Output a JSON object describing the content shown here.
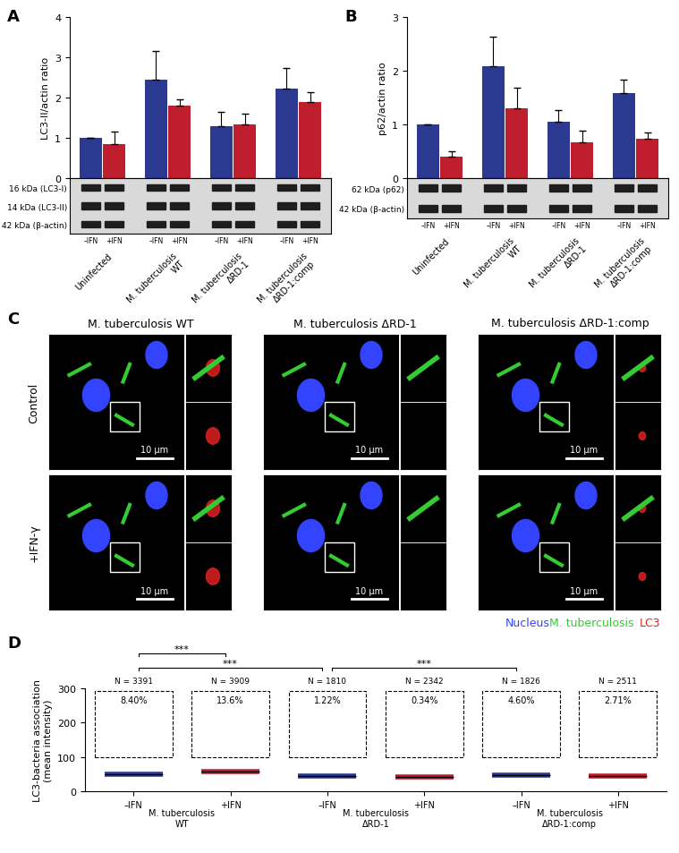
{
  "chart_data": [
    {
      "panel": "A",
      "type": "bar",
      "ylabel": "LC3-II/actin ratio",
      "ylim": [
        0,
        4
      ],
      "yticks": [
        0,
        1,
        2,
        3,
        4
      ],
      "tick_labels": "y",
      "categories": [
        "Uninfected",
        "M. tuberculosis WT",
        "M. tuberculosis ΔRD-1",
        "M. tuberculosis ΔRD-1:comp"
      ],
      "series": [
        {
          "name": "–IFN",
          "color": "#2b3990",
          "values": [
            1.0,
            2.45,
            1.28,
            2.22
          ],
          "errors": [
            0,
            0.7,
            0.36,
            0.52
          ]
        },
        {
          "name": "+IFN",
          "color": "#be1e2d",
          "values": [
            0.85,
            1.8,
            1.33,
            1.9
          ],
          "errors": [
            0.3,
            0.15,
            0.26,
            0.23
          ]
        }
      ],
      "blot_bands": [
        "16 kDa (LC3-I)",
        "14 kDa (LC3-II)",
        "42 kDa (β-actin)"
      ]
    },
    {
      "panel": "B",
      "type": "bar",
      "ylabel": "p62/actin ratio",
      "ylim": [
        0,
        3
      ],
      "yticks": [
        0,
        1,
        2,
        3
      ],
      "tick_labels": "y",
      "categories": [
        "Uninfected",
        "M. tuberculosis WT",
        "M. tuberculosis ΔRD-1",
        "M. tuberculosis ΔRD-1:comp"
      ],
      "series": [
        {
          "name": "–IFN",
          "color": "#2b3990",
          "values": [
            1.0,
            2.08,
            1.05,
            1.58
          ],
          "errors": [
            0,
            0.55,
            0.22,
            0.25
          ]
        },
        {
          "name": "+IFN",
          "color": "#be1e2d",
          "values": [
            0.4,
            1.3,
            0.67,
            0.73
          ],
          "errors": [
            0.1,
            0.38,
            0.22,
            0.12
          ]
        }
      ],
      "blot_bands": [
        "62 kDa (p62)",
        "42 kDa (β-actin)"
      ]
    },
    {
      "panel": "D",
      "type": "strip",
      "ylabel": "LC3-bacteria association (mean intensity)",
      "ylim": [
        0,
        300
      ],
      "yticks": [
        0,
        100,
        200,
        300
      ],
      "categories": [
        "–IFN",
        "+IFN",
        "–IFN",
        "+IFN",
        "–IFN",
        "+IFN"
      ],
      "groups": [
        "M. tuberculosis WT",
        "M. tuberculosis ΔRD-1",
        "M. tuberculosis ΔRD-1:comp"
      ],
      "colors": [
        "#2b3990",
        "#be1e2d",
        "#2b3990",
        "#be1e2d",
        "#2b3990",
        "#be1e2d"
      ],
      "medians": [
        50,
        57,
        45,
        41,
        48,
        45
      ],
      "threshold": 100,
      "n_labels": [
        "N = 3391",
        "N = 3909",
        "N = 1810",
        "N = 2342",
        "N = 1826",
        "N = 2511"
      ],
      "percent_labels": [
        "8.40%",
        "13.6%",
        "1.22%",
        "0.34%",
        "4.60%",
        "2.71%"
      ],
      "significance": [
        {
          "pair": [
            0,
            2
          ],
          "label": "***"
        },
        {
          "pair": [
            2,
            4
          ],
          "label": "***"
        },
        {
          "pair": [
            0,
            1
          ],
          "label": "***"
        }
      ]
    }
  ],
  "panel_c": {
    "panel": "C",
    "columns": [
      "M. tuberculosis WT",
      "M. tuberculosis ΔRD-1",
      "M. tuberculosis ΔRD-1:comp"
    ],
    "rows": [
      "Control",
      "+IFN-γ"
    ],
    "scale_bar": "10 µm",
    "channels": [
      {
        "name": "Nucleus",
        "color": "#3344ff"
      },
      {
        "name": "M. tuberculosis",
        "color": "#33cc33"
      },
      {
        "name": "LC3",
        "color": "#e02020"
      }
    ]
  }
}
